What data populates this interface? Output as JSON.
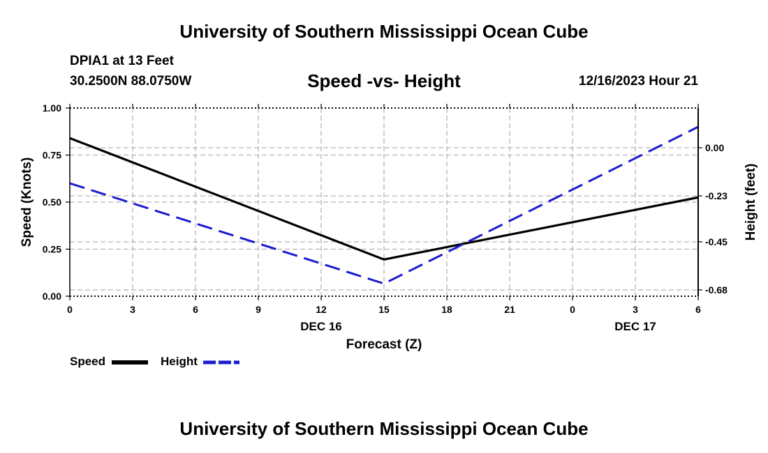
{
  "header": {
    "title": "University of Southern Mississippi Ocean Cube",
    "station": "DPIA1 at 13 Feet",
    "coordinates": "30.2500N  88.0750W",
    "subtitle": "Speed -vs- Height",
    "date_hour": "12/16/2023 Hour 21"
  },
  "footer": {
    "title": "University of Southern Mississippi Ocean Cube"
  },
  "legend": {
    "speed_label": "Speed",
    "height_label": "Height"
  },
  "colors": {
    "speed": "#000000",
    "height": "#1a1ad0",
    "grid": "#b4b4b4"
  },
  "chart_data": {
    "type": "line",
    "title": "Speed -vs- Height",
    "xlabel": "Forecast (Z)",
    "ylabel": "Speed (Knots)",
    "y2label": "Height (feet)",
    "x_ticks": [
      "0",
      "3",
      "6",
      "9",
      "12",
      "15",
      "18",
      "21",
      "0",
      "3",
      "6"
    ],
    "x_date_labels": [
      {
        "at_hours": 12,
        "label": "DEC 16"
      },
      {
        "at_hours": 27,
        "label": "DEC 17"
      }
    ],
    "xlim_hours": [
      0,
      30
    ],
    "ylim": [
      0,
      1.0
    ],
    "y_ticks": [
      "0.00",
      "0.25",
      "0.50",
      "0.75",
      "1.00"
    ],
    "y_tick_values": [
      0,
      0.25,
      0.5,
      0.75,
      1.0
    ],
    "y2lim": [
      -0.71,
      0.19
    ],
    "y2_ticks": [
      "0.00",
      "-0.23",
      "-0.45",
      "-0.68"
    ],
    "y2_tick_values": [
      0.0,
      -0.23,
      -0.45,
      -0.68
    ],
    "series": [
      {
        "name": "Speed",
        "axis": "left",
        "style": "solid",
        "x_hours": [
          0,
          15,
          30
        ],
        "values": [
          0.84,
          0.195,
          0.525
        ]
      },
      {
        "name": "Height",
        "axis": "right",
        "style": "dashed",
        "x_hours": [
          0,
          15,
          30
        ],
        "values": [
          -0.17,
          -0.65,
          0.1
        ]
      }
    ]
  }
}
